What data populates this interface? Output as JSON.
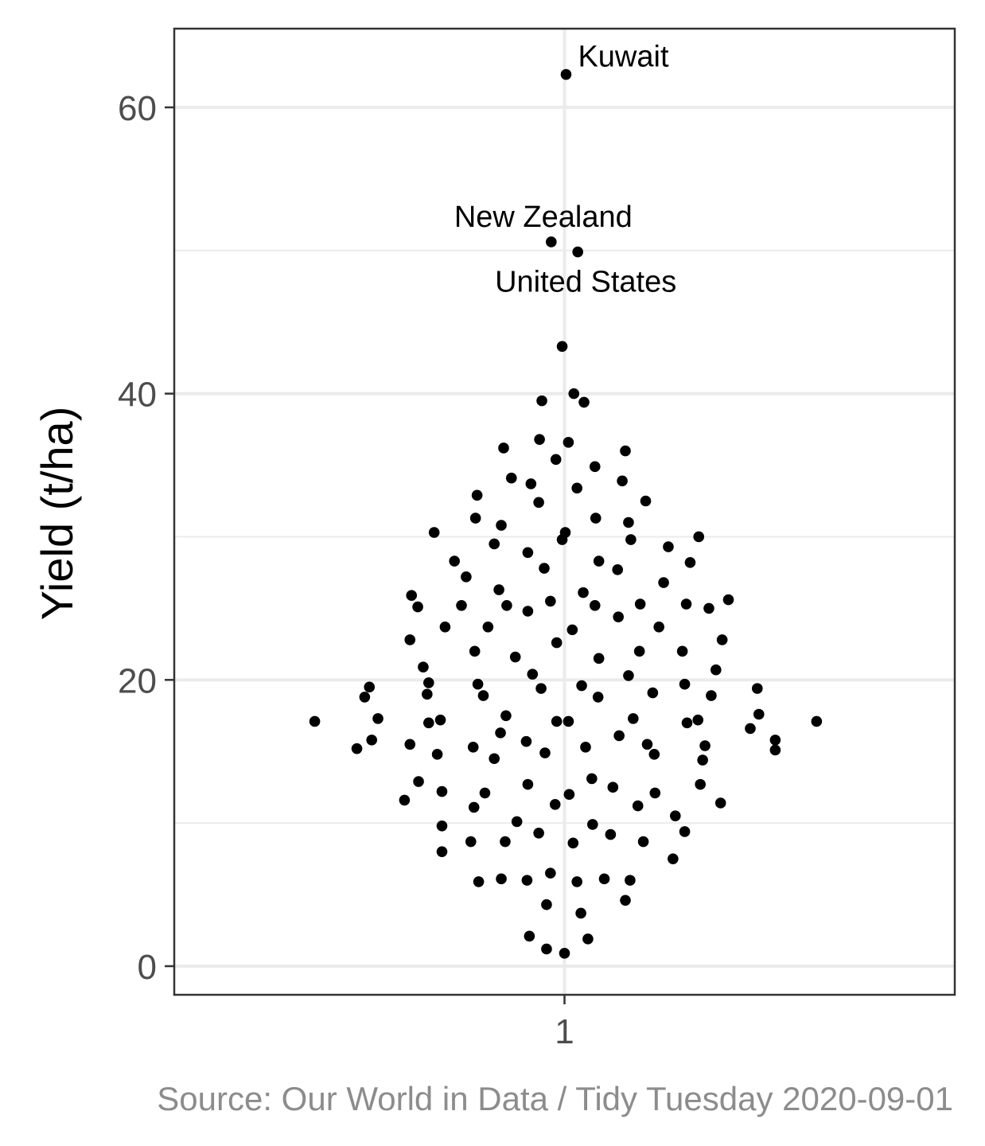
{
  "chart_data": {
    "type": "scatter",
    "title": "",
    "xlabel": "",
    "ylabel": "Yield (t/ha)",
    "ylim": [
      -2,
      65.5
    ],
    "y_ticks": [
      0,
      20,
      40,
      60
    ],
    "y_tick_labels": [
      "0",
      "20",
      "40",
      "60"
    ],
    "x_ticks": [
      1
    ],
    "x_tick_labels": [
      "1"
    ],
    "xlim": [
      0.5,
      1.5
    ],
    "grid": true,
    "legend": "none",
    "caption": "Source: Our World in Data / Tidy Tuesday 2020-09-01",
    "point_color": "#000000",
    "series": [
      {
        "points": [
          [
            1.002,
            62.3
          ],
          [
            0.983,
            50.6
          ],
          [
            1.017,
            49.9
          ],
          [
            0.997,
            43.3
          ],
          [
            1.012,
            40.0
          ],
          [
            0.971,
            39.5
          ],
          [
            1.025,
            39.4
          ],
          [
            0.922,
            36.2
          ],
          [
            0.968,
            36.8
          ],
          [
            1.005,
            36.6
          ],
          [
            1.078,
            36.0
          ],
          [
            0.989,
            35.4
          ],
          [
            1.039,
            34.9
          ],
          [
            0.932,
            34.1
          ],
          [
            0.957,
            33.7
          ],
          [
            1.016,
            33.4
          ],
          [
            1.074,
            33.9
          ],
          [
            0.888,
            32.9
          ],
          [
            0.967,
            32.4
          ],
          [
            1.104,
            32.5
          ],
          [
            0.886,
            31.3
          ],
          [
            0.919,
            30.8
          ],
          [
            1.04,
            31.3
          ],
          [
            1.082,
            31.0
          ],
          [
            0.833,
            30.3
          ],
          [
            1.001,
            30.3
          ],
          [
            0.997,
            29.8
          ],
          [
            1.085,
            29.8
          ],
          [
            0.91,
            29.5
          ],
          [
            1.133,
            29.3
          ],
          [
            1.172,
            30.0
          ],
          [
            0.953,
            28.9
          ],
          [
            0.859,
            28.3
          ],
          [
            0.974,
            27.8
          ],
          [
            1.044,
            28.3
          ],
          [
            1.068,
            27.7
          ],
          [
            1.161,
            28.2
          ],
          [
            0.874,
            27.2
          ],
          [
            0.804,
            25.9
          ],
          [
            0.812,
            25.1
          ],
          [
            0.916,
            26.3
          ],
          [
            0.868,
            25.2
          ],
          [
            0.926,
            25.2
          ],
          [
            0.982,
            25.5
          ],
          [
            1.024,
            26.1
          ],
          [
            1.039,
            25.2
          ],
          [
            1.097,
            25.3
          ],
          [
            1.127,
            26.8
          ],
          [
            1.156,
            25.3
          ],
          [
            1.185,
            25.0
          ],
          [
            1.21,
            25.6
          ],
          [
            0.953,
            24.8
          ],
          [
            1.069,
            24.4
          ],
          [
            0.802,
            22.8
          ],
          [
            0.847,
            23.7
          ],
          [
            0.902,
            23.7
          ],
          [
            1.01,
            23.5
          ],
          [
            0.99,
            22.6
          ],
          [
            1.121,
            23.7
          ],
          [
            1.202,
            22.8
          ],
          [
            0.885,
            22.0
          ],
          [
            0.937,
            21.6
          ],
          [
            1.044,
            21.5
          ],
          [
            1.096,
            22.0
          ],
          [
            1.151,
            22.0
          ],
          [
            0.819,
            20.9
          ],
          [
            0.959,
            20.4
          ],
          [
            1.082,
            20.3
          ],
          [
            1.194,
            20.7
          ],
          [
            0.75,
            19.5
          ],
          [
            0.826,
            19.8
          ],
          [
            0.889,
            19.7
          ],
          [
            0.97,
            19.4
          ],
          [
            1.022,
            19.6
          ],
          [
            1.154,
            19.7
          ],
          [
            0.744,
            18.8
          ],
          [
            0.824,
            19.0
          ],
          [
            0.896,
            18.9
          ],
          [
            1.043,
            18.8
          ],
          [
            1.113,
            19.1
          ],
          [
            1.188,
            18.9
          ],
          [
            1.247,
            19.4
          ],
          [
            0.68,
            17.1
          ],
          [
            0.761,
            17.3
          ],
          [
            0.826,
            17.0
          ],
          [
            0.841,
            17.2
          ],
          [
            0.925,
            17.5
          ],
          [
            0.99,
            17.1
          ],
          [
            1.005,
            17.1
          ],
          [
            1.088,
            17.3
          ],
          [
            1.157,
            17.0
          ],
          [
            1.171,
            17.2
          ],
          [
            1.249,
            17.6
          ],
          [
            0.918,
            16.3
          ],
          [
            1.07,
            16.1
          ],
          [
            1.238,
            16.6
          ],
          [
            0.734,
            15.2
          ],
          [
            0.753,
            15.8
          ],
          [
            0.802,
            15.5
          ],
          [
            0.883,
            15.3
          ],
          [
            0.951,
            15.7
          ],
          [
            0.975,
            14.9
          ],
          [
            1.027,
            15.3
          ],
          [
            1.106,
            15.5
          ],
          [
            1.18,
            15.4
          ],
          [
            1.27,
            15.8
          ],
          [
            0.837,
            14.8
          ],
          [
            0.91,
            14.5
          ],
          [
            1.115,
            14.8
          ],
          [
            1.177,
            14.4
          ],
          [
            1.27,
            15.1
          ],
          [
            1.323,
            17.1
          ],
          [
            0.813,
            12.9
          ],
          [
            0.843,
            12.2
          ],
          [
            0.898,
            12.1
          ],
          [
            0.953,
            12.7
          ],
          [
            1.035,
            13.1
          ],
          [
            1.006,
            12.0
          ],
          [
            1.062,
            12.5
          ],
          [
            1.116,
            12.1
          ],
          [
            1.174,
            12.7
          ],
          [
            0.795,
            11.6
          ],
          [
            0.884,
            11.1
          ],
          [
            0.988,
            11.3
          ],
          [
            1.094,
            11.2
          ],
          [
            1.2,
            11.4
          ],
          [
            0.843,
            9.8
          ],
          [
            0.939,
            10.1
          ],
          [
            1.036,
            9.9
          ],
          [
            1.142,
            10.5
          ],
          [
            0.88,
            8.7
          ],
          [
            0.924,
            8.7
          ],
          [
            0.967,
            9.3
          ],
          [
            1.011,
            8.6
          ],
          [
            1.059,
            9.2
          ],
          [
            1.101,
            8.7
          ],
          [
            1.154,
            9.4
          ],
          [
            0.843,
            8.0
          ],
          [
            1.139,
            7.5
          ],
          [
            0.89,
            5.9
          ],
          [
            0.919,
            6.1
          ],
          [
            0.952,
            6.0
          ],
          [
            0.982,
            6.5
          ],
          [
            1.016,
            5.9
          ],
          [
            1.051,
            6.1
          ],
          [
            1.084,
            6.0
          ],
          [
            0.977,
            4.3
          ],
          [
            1.021,
            3.7
          ],
          [
            1.078,
            4.6
          ],
          [
            0.955,
            2.1
          ],
          [
            0.977,
            1.2
          ],
          [
            1.0,
            0.9
          ],
          [
            1.03,
            1.9
          ]
        ]
      }
    ],
    "annotations": [
      {
        "text": "Kuwait",
        "x": 1.002,
        "y": 62.3
      },
      {
        "text": "New Zealand",
        "x": 0.983,
        "y": 50.6
      },
      {
        "text": "United States",
        "x": 1.017,
        "y": 49.9
      }
    ]
  }
}
